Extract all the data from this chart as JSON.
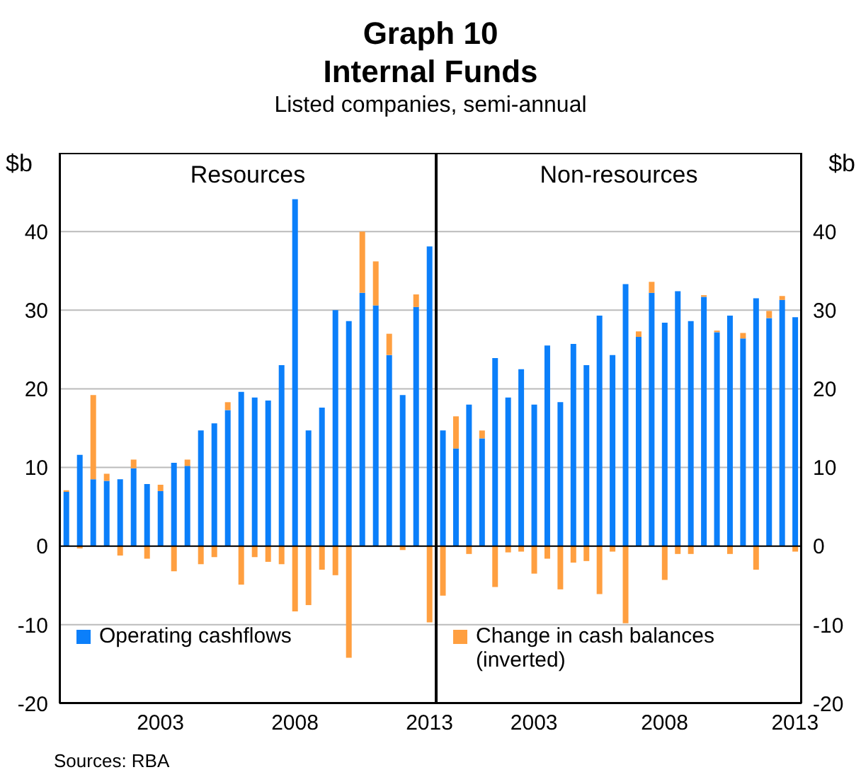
{
  "chart_data": [
    {
      "type": "bar",
      "title": "Graph 10\nInternal Funds",
      "subtitle": "Listed companies, semi-annual",
      "ylabel": "$b",
      "annotations": [
        "Resources",
        "Sources: RBA"
      ],
      "categories": [
        null,
        null,
        null,
        null,
        null,
        null,
        null,
        "2003",
        null,
        null,
        null,
        null,
        null,
        null,
        null,
        null,
        null,
        "2008",
        null,
        null,
        null,
        null,
        null,
        null,
        null,
        null,
        null,
        "2013"
      ],
      "stacked": true,
      "grid": "y",
      "legend": "bottom left",
      "ylim": [
        -20,
        50
      ],
      "yticks": [
        -20,
        -10,
        0,
        10,
        20,
        30,
        40
      ],
      "series": [
        {
          "name": "Operating cashflows",
          "color": "#0b7ffa",
          "values": [
            6.9,
            11.6,
            8.5,
            8.3,
            8.5,
            9.9,
            7.9,
            7.0,
            10.6,
            10.2,
            14.7,
            15.6,
            17.3,
            19.6,
            18.9,
            18.5,
            23.0,
            44.1,
            14.7,
            17.6,
            30.0,
            28.6,
            32.2,
            30.6,
            24.3,
            19.2,
            30.4,
            38.1
          ]
        },
        {
          "color": "#ff9f40",
          "values": [
            0.2,
            -0.3,
            10.7,
            0.9,
            -1.2,
            1.1,
            -1.6,
            0.8,
            -3.2,
            0.8,
            -2.3,
            -1.4,
            1.0,
            -4.9,
            -1.4,
            -2.0,
            -2.3,
            -8.3,
            -7.5,
            -3.0,
            -3.7,
            -14.2,
            7.8,
            5.6,
            2.7,
            -0.5,
            1.6,
            -9.7
          ]
        }
      ]
    },
    {
      "type": "bar",
      "title": "Non-resources",
      "y2label": "$b",
      "categories": [
        null,
        null,
        null,
        null,
        null,
        null,
        null,
        "2003",
        null,
        null,
        null,
        null,
        null,
        null,
        null,
        null,
        null,
        "2008",
        null,
        null,
        null,
        null,
        null,
        null,
        null,
        null,
        null,
        "2013"
      ],
      "stacked": true,
      "grid": "y",
      "legend": "bottom left",
      "y2lim": [
        -20,
        50
      ],
      "y2ticks": [
        -20,
        -10,
        0,
        10,
        20,
        30,
        40
      ],
      "series": [
        {
          "color": "#0b7ffa",
          "axis": "y2",
          "values": [
            14.7,
            12.4,
            18.0,
            13.7,
            23.9,
            18.9,
            22.5,
            18.0,
            25.5,
            18.3,
            25.7,
            23.0,
            29.3,
            24.3,
            33.3,
            26.6,
            32.2,
            28.4,
            32.4,
            28.6,
            31.7,
            27.2,
            29.3,
            26.4,
            31.5,
            29.0,
            31.3,
            29.1
          ]
        },
        {
          "name": "Change in cash balances (inverted)",
          "color": "#ff9f40",
          "axis": "y2",
          "values": [
            -6.3,
            4.1,
            -1.0,
            1.0,
            -5.2,
            -0.8,
            -0.7,
            -3.5,
            -1.6,
            -5.5,
            -2.1,
            -1.9,
            -6.1,
            -0.7,
            -9.8,
            0.7,
            1.4,
            -4.3,
            -1.0,
            -1.0,
            0.2,
            0.2,
            -1.0,
            0.7,
            -3.0,
            0.9,
            0.5,
            -0.7
          ]
        }
      ]
    }
  ]
}
